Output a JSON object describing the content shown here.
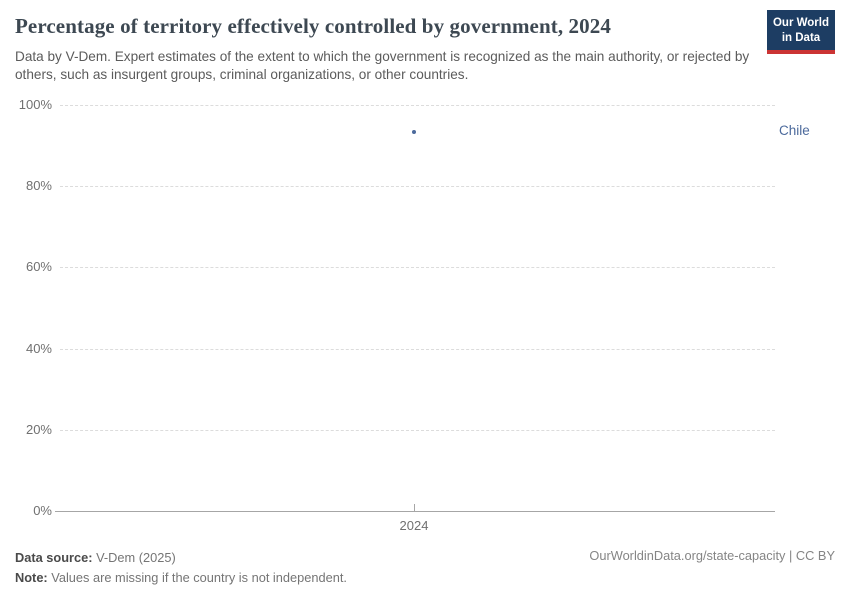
{
  "header": {
    "title": "Percentage of territory effectively controlled by government, 2024",
    "subtitle": "Data by V-Dem. Expert estimates of the extent to which the government is recognized as the main authority, or rejected by others, such as insurgent groups, criminal organizations, or other countries."
  },
  "logo": {
    "line1": "Our World",
    "line2": "in Data",
    "bg_color": "#1d3d63",
    "bar_color": "#cb3434"
  },
  "chart_data": {
    "type": "scatter",
    "title": "Percentage of territory effectively controlled by government, 2024",
    "series": [
      {
        "name": "Chile",
        "x": [
          2024
        ],
        "values": [
          93.4
        ],
        "color": "#4c6a9c"
      }
    ],
    "xlabel": "",
    "ylabel": "",
    "xticks": [
      "2024"
    ],
    "yticks": [
      0,
      20,
      40,
      60,
      80,
      100
    ],
    "ytick_suffix": "%",
    "ylim": [
      0,
      100
    ],
    "grid": "horizontal-dashed",
    "legend_position": "entity-label-right-of-plot"
  },
  "footer": {
    "datasource_label": "Data source:",
    "datasource_value": " V-Dem (2025)",
    "note_label": "Note:",
    "note_value": " Values are missing if the country is not independent.",
    "right_text": "OurWorldinData.org/state-capacity | CC BY"
  }
}
